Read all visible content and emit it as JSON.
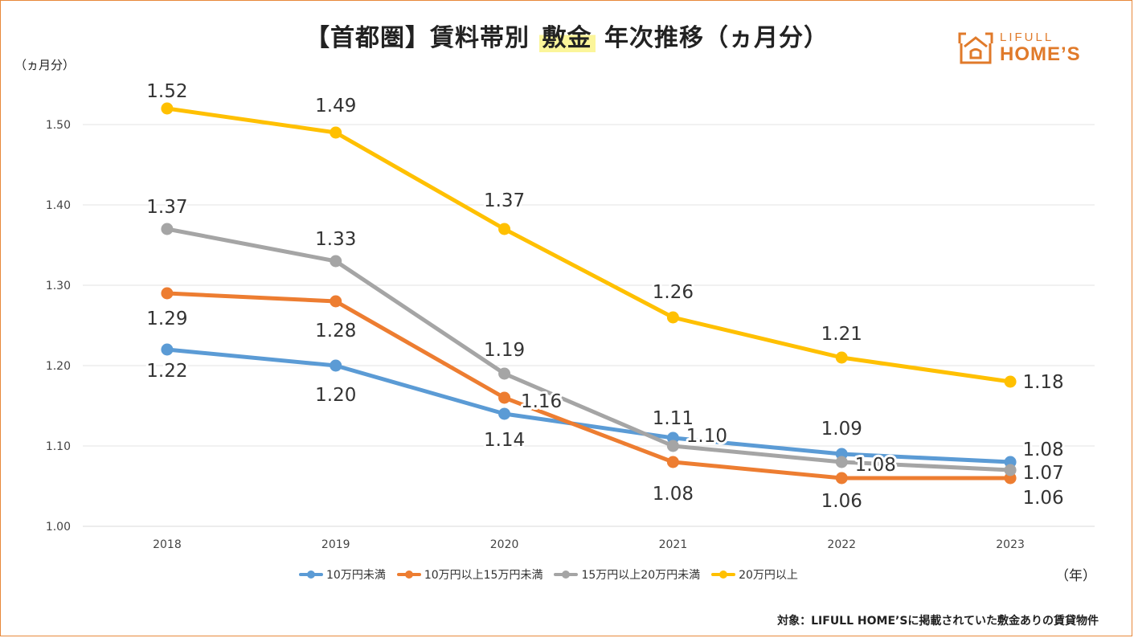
{
  "title": {
    "prefix": "【首都圏】賃料帯別 ",
    "highlight": "敷金",
    "suffix": " 年次推移（ヵ月分）"
  },
  "y_unit": "（ヵ月分）",
  "x_unit": "（年）",
  "footnote": "対象：LIFULL HOME’Sに掲載されていた敷金ありの賃貸物件",
  "logo": {
    "line1": "LIFULL",
    "line2": "HOME’S"
  },
  "chart_data": {
    "type": "line",
    "title": "【首都圏】賃料帯別 敷金 年次推移（ヵ月分）",
    "xlabel": "（年）",
    "ylabel": "（ヵ月分）",
    "categories": [
      "2018",
      "2019",
      "2020",
      "2021",
      "2022",
      "2023"
    ],
    "ylim": [
      1.0,
      1.5
    ],
    "yticks": [
      "1.00",
      "1.10",
      "1.20",
      "1.30",
      "1.40",
      "1.50"
    ],
    "grid": true,
    "legend_position": "bottom",
    "series": [
      {
        "name": "10万円未満",
        "color": "#5b9bd5",
        "values": [
          1.22,
          1.2,
          1.14,
          1.11,
          1.09,
          1.08
        ],
        "labels": [
          "1.22",
          "1.20",
          "1.14",
          "1.11",
          "1.09",
          "1.08"
        ]
      },
      {
        "name": "10万円以上15万円未満",
        "color": "#ed7d31",
        "values": [
          1.29,
          1.28,
          1.16,
          1.08,
          1.06,
          1.06
        ],
        "labels": [
          "1.29",
          "1.28",
          "1.16",
          "1.08",
          "1.06",
          "1.06"
        ]
      },
      {
        "name": "15万円以上20万円未満",
        "color": "#a5a5a5",
        "values": [
          1.37,
          1.33,
          1.19,
          1.1,
          1.08,
          1.07
        ],
        "labels": [
          "1.37",
          "1.33",
          "1.19",
          "1.10",
          "1.08",
          "1.07"
        ]
      },
      {
        "name": "20万円以上",
        "color": "#ffc000",
        "values": [
          1.52,
          1.49,
          1.37,
          1.26,
          1.21,
          1.18
        ],
        "labels": [
          "1.52",
          "1.49",
          "1.37",
          "1.26",
          "1.21",
          "1.18"
        ]
      }
    ]
  }
}
